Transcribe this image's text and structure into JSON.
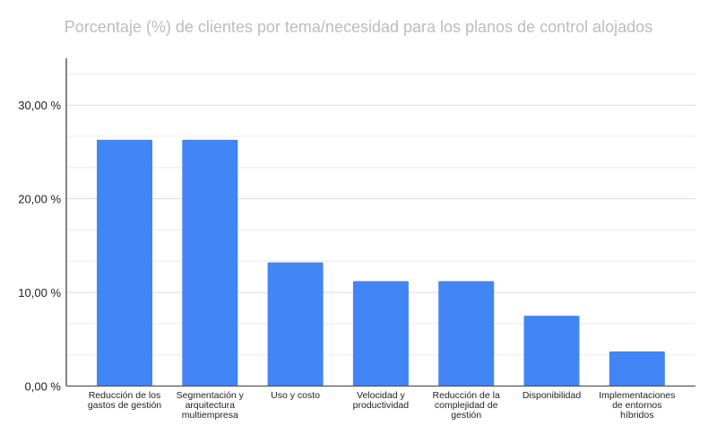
{
  "chart_data": {
    "type": "bar",
    "title": "Porcentaje (%) de clientes por tema/necesidad para los planos de control alojados",
    "xlabel": "",
    "ylabel": "",
    "categories": [
      "Reducción de los gastos de gestión",
      "Segmentación y arquitectura multiempresa",
      "Uso y costo",
      "Velocidad y productividad",
      "Reducción de la complejidad de gestión",
      "Disponibilidad",
      "Implementaciones de entornos híbridos"
    ],
    "values": [
      26.3,
      26.3,
      13.2,
      11.2,
      11.2,
      7.5,
      3.7
    ],
    "ylim": [
      0,
      35
    ],
    "yticks": [
      0,
      10,
      20,
      30
    ],
    "ytick_labels": [
      "0,00 %",
      "10,00 %",
      "20,00 %",
      "30,00 %"
    ],
    "grid": true,
    "bar_color": "#4285f4",
    "legend": "none"
  }
}
